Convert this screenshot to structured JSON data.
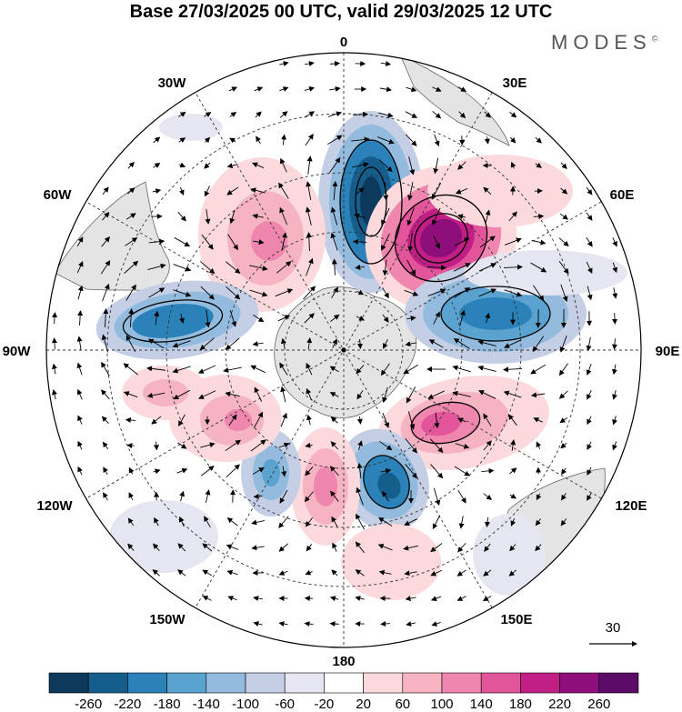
{
  "title": "Base 27/03/2025 00 UTC, valid 29/03/2025 12 UTC",
  "brand": "MODES",
  "brand_mark": "©",
  "longitude_labels": {
    "lon_0": "0",
    "lon_30e": "30E",
    "lon_60e": "60E",
    "lon_90e": "90E",
    "lon_120e": "120E",
    "lon_150e": "150E",
    "lon_180": "180",
    "lon_150w": "150W",
    "lon_120w": "120W",
    "lon_90w": "90W",
    "lon_60w": "60W",
    "lon_30w": "30W"
  },
  "reference_vector_label": "30",
  "colorbar": {
    "ticks": [
      "-260",
      "-220",
      "-180",
      "-140",
      "-100",
      "-60",
      "-20",
      "20",
      "60",
      "100",
      "140",
      "180",
      "220",
      "260"
    ],
    "colors": [
      "#0d3a5c",
      "#155e8c",
      "#2b82b8",
      "#5aa2cf",
      "#93bbde",
      "#c4cfe6",
      "#e6e6f2",
      "#ffffff",
      "#fbd9dc",
      "#f6b3c2",
      "#ef86ae",
      "#e2559a",
      "#c21f86",
      "#8e0f7a",
      "#5b0c66"
    ]
  },
  "anomaly_centers": [
    {
      "kind": "negative",
      "level": 3
    },
    {
      "kind": "positive",
      "level": 3
    },
    {
      "kind": "negative",
      "level": 2
    },
    {
      "kind": "positive",
      "level": 2
    },
    {
      "kind": "negative",
      "level": 2
    },
    {
      "kind": "positive",
      "level": 1
    },
    {
      "kind": "negative",
      "level": 1
    },
    {
      "kind": "positive",
      "level": 1
    },
    {
      "kind": "positive",
      "level": 1
    },
    {
      "kind": "negative",
      "level": 2
    },
    {
      "kind": "positive",
      "level": 1
    },
    {
      "kind": "positive",
      "level": 0
    }
  ]
}
